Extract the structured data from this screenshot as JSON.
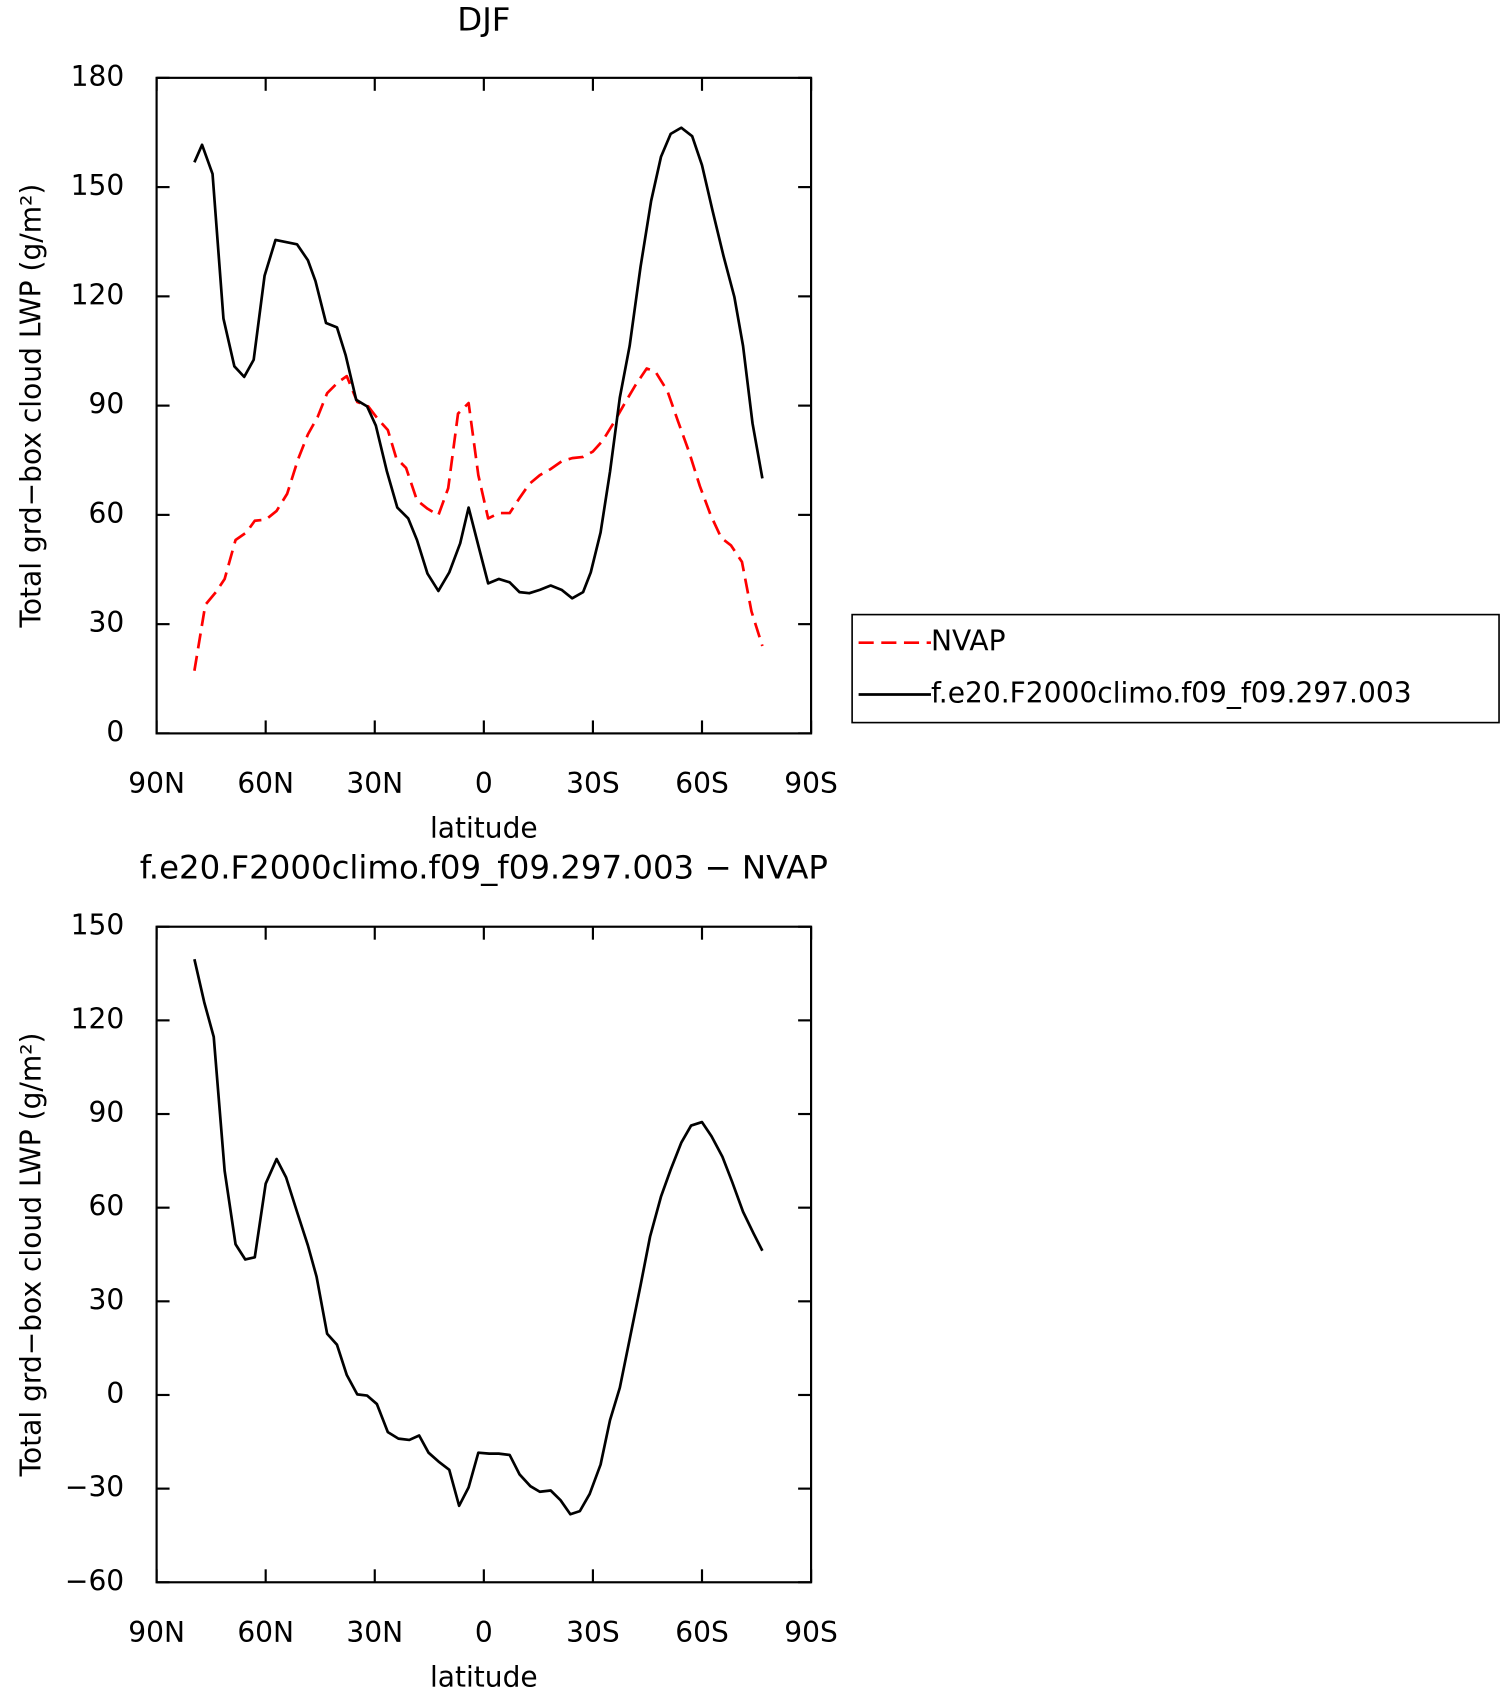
{
  "chart_data": [
    {
      "type": "line",
      "title": "DJF",
      "x_label": "latitude",
      "y_label": "Total grd−box cloud LWP (g/m²)",
      "xlim": [
        90,
        -90
      ],
      "xticks": [
        {
          "value": 90,
          "label": "90N"
        },
        {
          "value": 60,
          "label": "60N"
        },
        {
          "value": 30,
          "label": "30N"
        },
        0,
        {
          "value": -30,
          "label": "30S"
        },
        {
          "value": -60,
          "label": "60S"
        },
        {
          "value": -90,
          "label": "90S"
        }
      ],
      "ylim": [
        0,
        180
      ],
      "yticks": [
        0,
        30,
        60,
        90,
        120,
        150,
        180
      ],
      "legend": "right",
      "series": [
        {
          "name": "NVAP",
          "color": "#ff0000",
          "style": "dashed",
          "x": [
            79.6,
            76.6,
            73.7,
            71.3,
            68.3,
            65.3,
            63.0,
            60.0,
            57.0,
            54.1,
            51.1,
            48.4,
            45.7,
            43.1,
            40.1,
            37.7,
            34.8,
            31.8,
            29.1,
            26.4,
            24.1,
            21.4,
            18.4,
            15.5,
            12.5,
            9.8,
            7.1,
            4.2,
            1.5,
            -1.2,
            -4.1,
            -7.1,
            -9.8,
            -12.5,
            -15.4,
            -18.4,
            -21.4,
            -24.3,
            -27.3,
            -30.0,
            -32.7,
            -35.6,
            -38.6,
            -41.6,
            -44.8,
            -47.2,
            -50.5,
            -53.4,
            -56.4,
            -59.4,
            -62.4,
            -65.3,
            -68.0,
            -71.0,
            -73.6,
            -76.6
          ],
          "values": [
            17.2,
            35.3,
            38.8,
            42.4,
            53.1,
            55.2,
            58.4,
            58.7,
            61.1,
            65.8,
            75.3,
            82.1,
            86.9,
            93.4,
            96.4,
            98.1,
            91.0,
            89.8,
            86.3,
            83.3,
            75.6,
            72.9,
            64.0,
            61.7,
            59.9,
            67.3,
            87.8,
            90.7,
            70.9,
            59.0,
            60.5,
            60.5,
            64.6,
            68.5,
            70.9,
            72.6,
            74.7,
            75.6,
            75.9,
            77.4,
            80.4,
            85.1,
            90.4,
            95.5,
            100.2,
            99.3,
            94.0,
            85.7,
            77.4,
            67.9,
            59.9,
            53.7,
            51.6,
            47.1,
            33.5,
            24.0
          ]
        },
        {
          "name": "f.e20.F2000climo.f09_f09.297.003",
          "color": "#000000",
          "style": "solid",
          "x": [
            79.6,
            77.5,
            74.6,
            71.6,
            68.6,
            65.9,
            63.3,
            60.3,
            57.3,
            51.4,
            48.4,
            46.3,
            43.4,
            40.4,
            38.0,
            35.1,
            32.1,
            29.7,
            26.7,
            23.8,
            20.8,
            18.4,
            15.5,
            12.5,
            9.5,
            6.5,
            4.2,
            1.5,
            -1.2,
            -4.1,
            -7.1,
            -9.8,
            -12.5,
            -15.4,
            -18.4,
            -21.4,
            -24.3,
            -27.3,
            -29.4,
            -32.1,
            -34.7,
            -37.4,
            -40.1,
            -43.1,
            -46.0,
            -48.7,
            -51.4,
            -54.3,
            -57.3,
            -60.0,
            -62.9,
            -65.9,
            -68.9,
            -71.3,
            -73.9,
            -76.6
          ],
          "values": [
            156.8,
            161.6,
            153.6,
            113.9,
            100.8,
            97.9,
            102.6,
            125.7,
            135.5,
            134.3,
            129.9,
            124.2,
            112.7,
            111.5,
            103.8,
            91.6,
            89.8,
            84.5,
            72.1,
            62.0,
            59.0,
            53.1,
            43.9,
            39.1,
            44.2,
            52.2,
            62.0,
            51.6,
            41.2,
            42.4,
            41.5,
            38.8,
            38.5,
            39.4,
            40.6,
            39.4,
            37.1,
            38.8,
            44.2,
            55.2,
            71.8,
            92.2,
            106.4,
            128.1,
            146.2,
            158.3,
            164.6,
            166.3,
            164.0,
            156.0,
            143.5,
            131.1,
            119.8,
            106.4,
            85.1,
            70.0
          ]
        }
      ]
    },
    {
      "type": "line",
      "title": "f.e20.F2000climo.f09_f09.297.003 − NVAP",
      "x_label": "latitude",
      "y_label": "Total grd−box cloud LWP (g/m²)",
      "xlim": [
        90,
        -90
      ],
      "xticks": [
        {
          "value": 90,
          "label": "90N"
        },
        {
          "value": 60,
          "label": "60N"
        },
        {
          "value": 30,
          "label": "30N"
        },
        0,
        {
          "value": -30,
          "label": "30S"
        },
        {
          "value": -60,
          "label": "60S"
        },
        {
          "value": -90,
          "label": "90S"
        }
      ],
      "ylim": [
        -60,
        150
      ],
      "yticks": [
        {
          "value": -60,
          "label": "−60"
        },
        {
          "value": -30,
          "label": "−30"
        },
        0,
        30,
        60,
        90,
        120,
        150
      ],
      "series": [
        {
          "color": "#000000",
          "style": "solid",
          "x": [
            79.6,
            76.9,
            74.3,
            71.3,
            68.3,
            65.6,
            63.0,
            60.0,
            57.0,
            54.4,
            51.4,
            48.4,
            46.0,
            43.1,
            40.4,
            37.7,
            34.8,
            32.1,
            29.4,
            26.4,
            23.5,
            20.5,
            17.8,
            15.2,
            12.5,
            9.5,
            6.8,
            4.2,
            1.5,
            -1.5,
            -4.1,
            -7.1,
            -9.8,
            -12.8,
            -15.4,
            -18.4,
            -21.1,
            -23.8,
            -26.4,
            -29.1,
            -32.1,
            -34.7,
            -37.4,
            -40.1,
            -43.1,
            -45.7,
            -48.7,
            -51.4,
            -54.3,
            -57.0,
            -60.0,
            -62.6,
            -65.6,
            -68.3,
            -71.3,
            -74.2,
            -76.6
          ],
          "values": [
            139.6,
            125.8,
            114.7,
            71.8,
            48.3,
            43.4,
            44.1,
            67.7,
            75.6,
            69.7,
            58.7,
            47.9,
            37.9,
            19.6,
            16.1,
            6.4,
            0.2,
            -0.2,
            -2.9,
            -11.9,
            -14.0,
            -14.4,
            -13.0,
            -18.5,
            -21.3,
            -24.0,
            -35.5,
            -29.6,
            -18.5,
            -18.8,
            -18.8,
            -19.2,
            -25.4,
            -29.2,
            -31.0,
            -30.6,
            -33.7,
            -38.2,
            -37.2,
            -31.7,
            -22.3,
            -8.1,
            2.3,
            17.8,
            35.1,
            50.7,
            63.5,
            72.2,
            80.8,
            86.3,
            87.4,
            82.9,
            76.3,
            68.3,
            58.7,
            51.7,
            46.2
          ]
        }
      ]
    }
  ]
}
